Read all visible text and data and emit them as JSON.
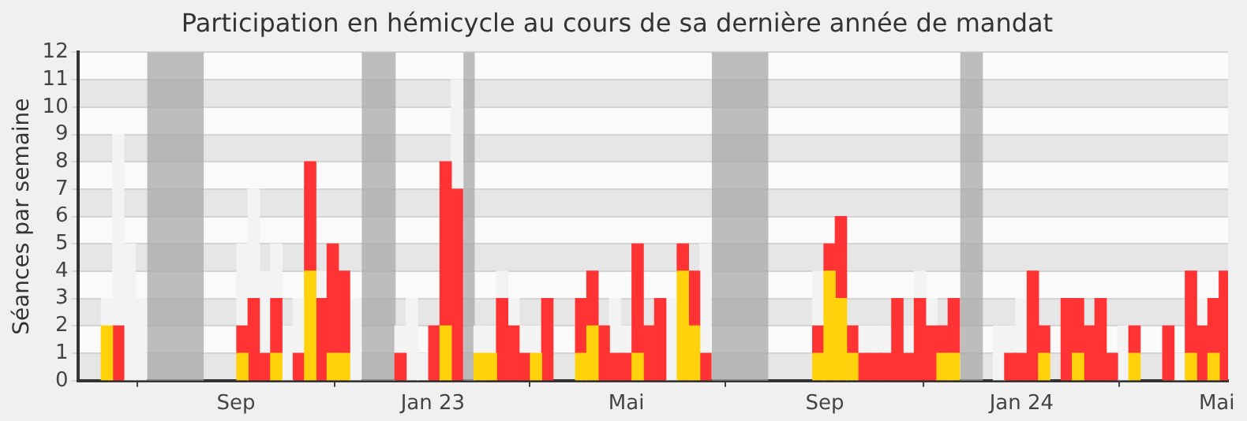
{
  "chart_data": {
    "type": "bar",
    "title": "Participation en hémicycle au cours de sa dernière année de mandat",
    "ylabel": "Séances par semaine",
    "stacked": true,
    "grid": "y",
    "x": [
      "2022-06-13",
      "2022-06-20",
      "2022-06-27",
      "2022-07-04",
      "2022-07-11",
      "2022-07-18",
      "2022-07-25",
      "2022-08-01",
      "2022-08-08",
      "2022-08-15",
      "2022-08-22",
      "2022-08-29",
      "2022-09-05",
      "2022-09-12",
      "2022-09-19",
      "2022-09-26",
      "2022-10-03",
      "2022-10-10",
      "2022-10-17",
      "2022-10-24",
      "2022-10-31",
      "2022-11-07",
      "2022-11-14",
      "2022-11-21",
      "2022-11-28",
      "2022-12-05",
      "2022-12-12",
      "2022-12-19",
      "2022-12-26",
      "2023-01-02",
      "2023-01-09",
      "2023-01-16",
      "2023-01-23",
      "2023-01-30",
      "2023-02-06",
      "2023-02-13",
      "2023-02-20",
      "2023-02-27",
      "2023-03-06",
      "2023-03-13",
      "2023-03-20",
      "2023-03-27",
      "2023-04-03",
      "2023-04-10",
      "2023-04-17",
      "2023-04-24",
      "2023-05-01",
      "2023-05-08",
      "2023-05-15",
      "2023-05-22",
      "2023-05-29",
      "2023-06-05",
      "2023-06-12",
      "2023-06-19",
      "2023-06-26",
      "2023-07-03",
      "2023-07-10",
      "2023-07-17",
      "2023-07-24",
      "2023-07-31",
      "2023-08-07",
      "2023-08-14",
      "2023-08-21",
      "2023-08-28",
      "2023-09-04",
      "2023-09-11",
      "2023-09-18",
      "2023-09-25",
      "2023-10-02",
      "2023-10-09",
      "2023-10-16",
      "2023-10-23",
      "2023-10-30",
      "2023-11-06",
      "2023-11-13",
      "2023-11-20",
      "2023-11-27",
      "2023-12-04",
      "2023-12-11",
      "2023-12-18",
      "2023-12-25",
      "2024-01-01",
      "2024-01-08",
      "2024-01-15",
      "2024-01-22",
      "2024-01-29",
      "2024-02-05",
      "2024-02-12",
      "2024-02-19",
      "2024-02-26",
      "2024-03-04",
      "2024-03-11",
      "2024-03-18",
      "2024-03-25",
      "2024-04-01",
      "2024-04-08",
      "2024-04-15",
      "2024-04-22",
      "2024-04-29",
      "2024-05-06"
    ],
    "series": [
      {
        "color": "#ffd20c",
        "values": [
          2,
          null,
          null,
          null,
          null,
          null,
          null,
          null,
          null,
          null,
          null,
          null,
          1,
          null,
          null,
          1,
          null,
          null,
          4,
          null,
          1,
          1,
          null,
          null,
          null,
          null,
          null,
          null,
          null,
          null,
          2,
          null,
          null,
          1,
          1,
          null,
          null,
          null,
          1,
          null,
          null,
          null,
          1,
          2,
          null,
          null,
          null,
          1,
          null,
          null,
          null,
          4,
          2,
          null,
          null,
          null,
          null,
          null,
          null,
          null,
          null,
          null,
          null,
          1,
          4,
          3,
          1,
          null,
          null,
          null,
          null,
          null,
          null,
          null,
          1,
          1,
          null,
          null,
          null,
          null,
          null,
          null,
          null,
          1,
          null,
          null,
          1,
          null,
          null,
          null,
          null,
          1,
          null,
          null,
          null,
          null,
          1,
          null,
          1,
          null
        ]
      },
      {
        "color": "#ff3333",
        "values": [
          null,
          2,
          null,
          null,
          null,
          null,
          null,
          null,
          null,
          null,
          null,
          null,
          1,
          3,
          1,
          2,
          null,
          1,
          4,
          3,
          4,
          3,
          null,
          null,
          null,
          null,
          1,
          null,
          null,
          2,
          6,
          7,
          null,
          null,
          null,
          3,
          2,
          1,
          null,
          3,
          null,
          null,
          2,
          2,
          2,
          1,
          1,
          4,
          2,
          3,
          null,
          1,
          2,
          1,
          null,
          null,
          null,
          null,
          null,
          null,
          null,
          null,
          null,
          1,
          1,
          3,
          1,
          1,
          1,
          1,
          3,
          1,
          3,
          2,
          1,
          2,
          null,
          null,
          null,
          null,
          1,
          1,
          4,
          1,
          null,
          3,
          2,
          2,
          3,
          1,
          null,
          1,
          null,
          null,
          2,
          null,
          3,
          2,
          2,
          4
        ]
      },
      {
        "color": "#f3f3f3",
        "values": [
          1,
          7,
          5,
          3,
          null,
          null,
          null,
          null,
          null,
          null,
          null,
          null,
          3,
          4,
          3,
          2,
          2,
          2,
          null,
          1,
          null,
          null,
          3,
          null,
          null,
          null,
          1,
          3,
          1,
          null,
          null,
          4,
          null,
          1,
          1,
          1,
          1,
          1,
          1,
          null,
          null,
          null,
          null,
          null,
          null,
          2,
          1,
          null,
          null,
          null,
          3,
          null,
          null,
          4,
          null,
          null,
          null,
          null,
          null,
          null,
          null,
          null,
          null,
          2,
          null,
          null,
          null,
          1,
          1,
          1,
          null,
          1,
          1,
          1,
          null,
          null,
          null,
          null,
          null,
          2,
          1,
          2,
          null,
          null,
          null,
          null,
          null,
          null,
          null,
          null,
          2,
          null,
          null,
          null,
          null,
          1,
          null,
          1,
          null,
          null
        ]
      }
    ],
    "xlim": [
      "2022-05-26",
      "2024-05-08"
    ],
    "xticks": [
      {
        "value": "2022-09-01",
        "label": "Sep"
      },
      {
        "value": "2023-01-01",
        "label": "Jan 23"
      },
      {
        "value": "2023-05-01",
        "label": "Mai"
      },
      {
        "value": "2023-09-01",
        "label": "Sep"
      },
      {
        "value": "2024-01-01",
        "label": "Jan 24"
      },
      {
        "value": "2024-05-01",
        "label": "Mai"
      }
    ],
    "ylim": [
      0,
      12
    ],
    "yticks": [
      0,
      1,
      2,
      3,
      4,
      5,
      6,
      7,
      8,
      9,
      10,
      11,
      12
    ],
    "bands": [
      {
        "axis": "x",
        "from": "2022-07-08",
        "to": "2022-08-12",
        "color": "#a8a8a8"
      },
      {
        "axis": "x",
        "from": "2022-11-18",
        "to": "2022-12-09",
        "color": "#a8a8a8"
      },
      {
        "axis": "x",
        "from": "2023-01-20",
        "to": "2023-01-27",
        "color": "#a8a8a8"
      },
      {
        "axis": "x",
        "from": "2023-06-23",
        "to": "2023-07-28",
        "color": "#a8a8a8"
      },
      {
        "axis": "x",
        "from": "2023-11-24",
        "to": "2023-12-08",
        "color": "#a8a8a8"
      }
    ]
  }
}
